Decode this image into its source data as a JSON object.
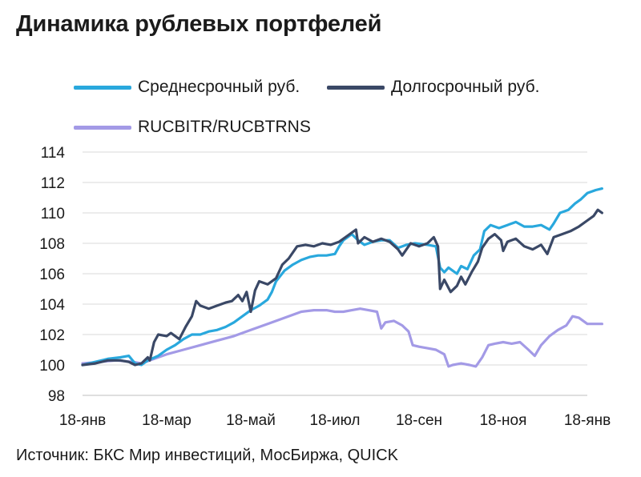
{
  "title": "Динамика рублевых портфелей",
  "source": "Источник: БКС Мир инвестиций, МосБиржа, QUICK",
  "chart_data": {
    "type": "line",
    "title": "Динамика рублевых портфелей",
    "ylim": [
      98,
      114
    ],
    "yticks": [
      "98",
      "100",
      "102",
      "104",
      "106",
      "108",
      "110",
      "112",
      "114"
    ],
    "xlim": [
      0,
      12
    ],
    "xticks": [
      {
        "x": 0,
        "label": "18-янв"
      },
      {
        "x": 2,
        "label": "18-мар"
      },
      {
        "x": 4,
        "label": "18-май"
      },
      {
        "x": 6,
        "label": "18-июл"
      },
      {
        "x": 8,
        "label": "18-сен"
      },
      {
        "x": 10,
        "label": "18-ноя"
      },
      {
        "x": 12,
        "label": "18-янв"
      }
    ],
    "grid": true,
    "legend_position": "top-left",
    "series": [
      {
        "name": "Среднесрочный руб.",
        "color": "#29A8DD",
        "points": [
          [
            0,
            100.0
          ],
          [
            0.3,
            100.2
          ],
          [
            0.6,
            100.4
          ],
          [
            0.9,
            100.5
          ],
          [
            1.1,
            100.6
          ],
          [
            1.25,
            100.1
          ],
          [
            1.4,
            100.0
          ],
          [
            1.55,
            100.3
          ],
          [
            1.8,
            100.6
          ],
          [
            2.0,
            101.0
          ],
          [
            2.2,
            101.3
          ],
          [
            2.4,
            101.7
          ],
          [
            2.6,
            102.0
          ],
          [
            2.8,
            102.0
          ],
          [
            3.0,
            102.2
          ],
          [
            3.2,
            102.3
          ],
          [
            3.4,
            102.5
          ],
          [
            3.6,
            102.8
          ],
          [
            3.8,
            103.2
          ],
          [
            4.0,
            103.6
          ],
          [
            4.2,
            103.9
          ],
          [
            4.4,
            104.3
          ],
          [
            4.5,
            104.8
          ],
          [
            4.6,
            105.5
          ],
          [
            4.8,
            106.2
          ],
          [
            5.0,
            106.6
          ],
          [
            5.2,
            106.9
          ],
          [
            5.4,
            107.1
          ],
          [
            5.6,
            107.2
          ],
          [
            5.8,
            107.2
          ],
          [
            6.0,
            107.3
          ],
          [
            6.1,
            107.8
          ],
          [
            6.2,
            108.2
          ],
          [
            6.4,
            108.6
          ],
          [
            6.55,
            108.2
          ],
          [
            6.7,
            107.9
          ],
          [
            6.9,
            108.1
          ],
          [
            7.1,
            108.2
          ],
          [
            7.3,
            108.2
          ],
          [
            7.5,
            107.7
          ],
          [
            7.7,
            107.9
          ],
          [
            7.9,
            108.0
          ],
          [
            8.2,
            107.9
          ],
          [
            8.4,
            107.8
          ],
          [
            8.5,
            106.4
          ],
          [
            8.6,
            106.1
          ],
          [
            8.7,
            106.4
          ],
          [
            8.9,
            106.0
          ],
          [
            9.0,
            106.5
          ],
          [
            9.15,
            106.3
          ],
          [
            9.3,
            107.2
          ],
          [
            9.45,
            107.6
          ],
          [
            9.55,
            108.8
          ],
          [
            9.7,
            109.2
          ],
          [
            9.9,
            109.0
          ],
          [
            10.1,
            109.2
          ],
          [
            10.3,
            109.4
          ],
          [
            10.5,
            109.1
          ],
          [
            10.7,
            109.1
          ],
          [
            10.9,
            109.2
          ],
          [
            11.1,
            108.9
          ],
          [
            11.2,
            109.3
          ],
          [
            11.35,
            110.0
          ],
          [
            11.55,
            110.2
          ],
          [
            11.7,
            110.6
          ],
          [
            11.85,
            110.9
          ],
          [
            12.0,
            111.3
          ],
          [
            12.2,
            111.5
          ],
          [
            12.35,
            111.6
          ]
        ]
      },
      {
        "name": "Долгосрочный руб.",
        "color": "#3A4866",
        "points": [
          [
            0,
            100.0
          ],
          [
            0.3,
            100.1
          ],
          [
            0.6,
            100.3
          ],
          [
            0.9,
            100.3
          ],
          [
            1.1,
            100.2
          ],
          [
            1.25,
            100.0
          ],
          [
            1.4,
            100.1
          ],
          [
            1.55,
            100.5
          ],
          [
            1.6,
            100.3
          ],
          [
            1.7,
            101.5
          ],
          [
            1.8,
            102.0
          ],
          [
            2.0,
            101.9
          ],
          [
            2.1,
            102.1
          ],
          [
            2.3,
            101.7
          ],
          [
            2.45,
            102.5
          ],
          [
            2.6,
            103.2
          ],
          [
            2.7,
            104.2
          ],
          [
            2.8,
            103.9
          ],
          [
            3.0,
            103.7
          ],
          [
            3.2,
            103.9
          ],
          [
            3.4,
            104.1
          ],
          [
            3.55,
            104.2
          ],
          [
            3.7,
            104.6
          ],
          [
            3.8,
            104.2
          ],
          [
            3.9,
            104.8
          ],
          [
            4.0,
            103.5
          ],
          [
            4.1,
            104.9
          ],
          [
            4.2,
            105.5
          ],
          [
            4.4,
            105.3
          ],
          [
            4.6,
            105.7
          ],
          [
            4.75,
            106.6
          ],
          [
            4.9,
            107.0
          ],
          [
            5.1,
            107.8
          ],
          [
            5.3,
            107.9
          ],
          [
            5.5,
            107.8
          ],
          [
            5.7,
            108.0
          ],
          [
            5.9,
            107.9
          ],
          [
            6.1,
            108.1
          ],
          [
            6.3,
            108.5
          ],
          [
            6.5,
            108.9
          ],
          [
            6.55,
            108.0
          ],
          [
            6.7,
            108.4
          ],
          [
            6.9,
            108.1
          ],
          [
            7.1,
            108.3
          ],
          [
            7.3,
            108.1
          ],
          [
            7.5,
            107.6
          ],
          [
            7.6,
            107.2
          ],
          [
            7.8,
            108.0
          ],
          [
            8.0,
            107.8
          ],
          [
            8.2,
            108.0
          ],
          [
            8.35,
            108.4
          ],
          [
            8.45,
            107.8
          ],
          [
            8.5,
            105.0
          ],
          [
            8.6,
            105.6
          ],
          [
            8.75,
            104.8
          ],
          [
            8.9,
            105.2
          ],
          [
            9.0,
            105.8
          ],
          [
            9.1,
            105.3
          ],
          [
            9.25,
            106.1
          ],
          [
            9.4,
            106.8
          ],
          [
            9.5,
            107.7
          ],
          [
            9.65,
            108.3
          ],
          [
            9.8,
            108.6
          ],
          [
            9.95,
            108.2
          ],
          [
            10.0,
            107.5
          ],
          [
            10.1,
            108.1
          ],
          [
            10.3,
            108.3
          ],
          [
            10.5,
            107.8
          ],
          [
            10.7,
            107.6
          ],
          [
            10.9,
            107.9
          ],
          [
            11.05,
            107.3
          ],
          [
            11.2,
            108.4
          ],
          [
            11.4,
            108.6
          ],
          [
            11.6,
            108.8
          ],
          [
            11.8,
            109.1
          ],
          [
            12.0,
            109.5
          ],
          [
            12.15,
            109.8
          ],
          [
            12.25,
            110.2
          ],
          [
            12.35,
            110.0
          ]
        ]
      },
      {
        "name": "RUCBITR/RUCBTRNS",
        "color": "#A39AE6",
        "points": [
          [
            0,
            100.1
          ],
          [
            0.4,
            100.2
          ],
          [
            0.8,
            100.3
          ],
          [
            1.2,
            100.2
          ],
          [
            1.4,
            100.1
          ],
          [
            1.6,
            100.3
          ],
          [
            1.8,
            100.5
          ],
          [
            2.0,
            100.7
          ],
          [
            2.4,
            101.0
          ],
          [
            2.8,
            101.3
          ],
          [
            3.2,
            101.6
          ],
          [
            3.6,
            101.9
          ],
          [
            4.0,
            102.3
          ],
          [
            4.4,
            102.7
          ],
          [
            4.8,
            103.1
          ],
          [
            5.2,
            103.5
          ],
          [
            5.5,
            103.6
          ],
          [
            5.8,
            103.6
          ],
          [
            6.0,
            103.5
          ],
          [
            6.2,
            103.5
          ],
          [
            6.4,
            103.6
          ],
          [
            6.6,
            103.7
          ],
          [
            6.8,
            103.6
          ],
          [
            7.0,
            103.5
          ],
          [
            7.1,
            102.4
          ],
          [
            7.2,
            102.8
          ],
          [
            7.4,
            102.9
          ],
          [
            7.6,
            102.6
          ],
          [
            7.75,
            102.2
          ],
          [
            7.85,
            101.3
          ],
          [
            8.0,
            101.2
          ],
          [
            8.2,
            101.1
          ],
          [
            8.4,
            101.0
          ],
          [
            8.6,
            100.7
          ],
          [
            8.7,
            99.9
          ],
          [
            8.8,
            100.0
          ],
          [
            9.0,
            100.1
          ],
          [
            9.2,
            100.0
          ],
          [
            9.35,
            99.9
          ],
          [
            9.5,
            100.5
          ],
          [
            9.65,
            101.3
          ],
          [
            9.8,
            101.4
          ],
          [
            10.0,
            101.5
          ],
          [
            10.2,
            101.4
          ],
          [
            10.4,
            101.5
          ],
          [
            10.6,
            101.0
          ],
          [
            10.75,
            100.6
          ],
          [
            10.9,
            101.3
          ],
          [
            11.1,
            101.9
          ],
          [
            11.3,
            102.3
          ],
          [
            11.5,
            102.6
          ],
          [
            11.65,
            103.2
          ],
          [
            11.8,
            103.1
          ],
          [
            12.0,
            102.7
          ],
          [
            12.2,
            102.7
          ],
          [
            12.35,
            102.7
          ]
        ]
      }
    ]
  }
}
